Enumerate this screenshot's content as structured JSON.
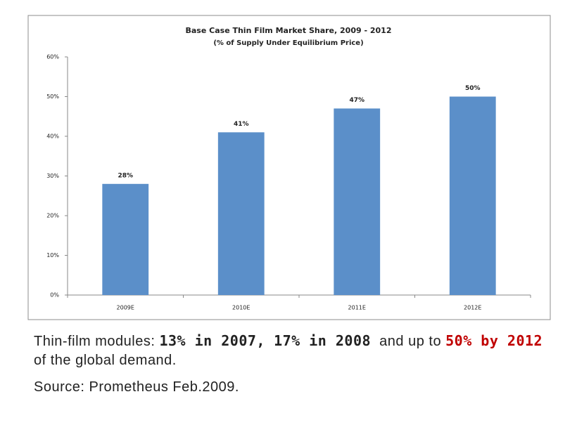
{
  "chart_data": {
    "type": "bar",
    "title": "Base Case Thin Film Market Share, 2009 - 2012",
    "subtitle": "(% of Supply Under Equilibrium Price)",
    "categories": [
      "2009E",
      "2010E",
      "2011E",
      "2012E"
    ],
    "values": [
      28,
      41,
      47,
      50
    ],
    "value_labels": [
      "28%",
      "41%",
      "47%",
      "50%"
    ],
    "color": "#5b8fc9",
    "ylim": [
      0,
      60
    ],
    "yticks": [
      {
        "value": 0,
        "label": "0%"
      },
      {
        "value": 10,
        "label": "10%"
      },
      {
        "value": 20,
        "label": "20%"
      },
      {
        "value": 30,
        "label": "30%"
      },
      {
        "value": 40,
        "label": "40%"
      },
      {
        "value": 50,
        "label": "50%"
      },
      {
        "value": 60,
        "label": "60%"
      }
    ],
    "grid": false
  },
  "caption": {
    "parts": [
      "Thin-film modules:",
      "13% in 2007,",
      "17% in 2008",
      "and up to",
      "50% by 2012",
      "of the global demand."
    ],
    "source": "Source: Prometheus Feb.2009."
  }
}
